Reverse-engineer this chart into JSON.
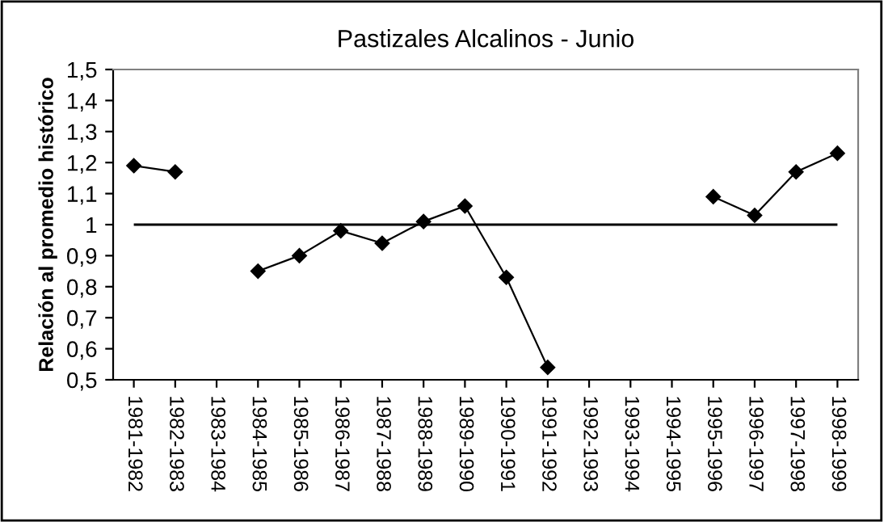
{
  "chart_data": {
    "type": "line",
    "title": "Pastizales Alcalinos - Junio",
    "ylabel": "Relación al promedio histórico",
    "categories": [
      "1981-1982",
      "1982-1983",
      "1983-1984",
      "1984-1985",
      "1985-1986",
      "1986-1987",
      "1987-1988",
      "1988-1989",
      "1989-1990",
      "1990-1991",
      "1991-1992",
      "1992-1993",
      "1993-1994",
      "1994-1995",
      "1995-1996",
      "1996-1997",
      "1997-1998",
      "1998-1999"
    ],
    "series": [
      {
        "color": "#000000",
        "values": [
          1.19,
          1.17,
          null,
          0.85,
          0.9,
          0.98,
          0.94,
          1.01,
          1.06,
          0.83,
          0.54,
          null,
          null,
          null,
          1.09,
          1.03,
          1.17,
          1.23
        ]
      }
    ],
    "ylim": [
      0.5,
      1.5
    ],
    "yticks": [
      {
        "value": 0.5,
        "label": "0,5"
      },
      {
        "value": 0.6,
        "label": "0,6"
      },
      {
        "value": 0.7,
        "label": "0,7"
      },
      {
        "value": 0.8,
        "label": "0,8"
      },
      {
        "value": 0.9,
        "label": "0,9"
      },
      1,
      {
        "value": 1.1,
        "label": "1,1"
      },
      {
        "value": 1.2,
        "label": "1,2"
      },
      {
        "value": 1.3,
        "label": "1,3"
      },
      {
        "value": 1.4,
        "label": "1,4"
      },
      {
        "value": 1.5,
        "label": "1,5"
      }
    ],
    "ref_lines": [
      {
        "axis": "y",
        "value": 1,
        "color": "#000000"
      }
    ],
    "marker": "diamond",
    "line_style": "solid",
    "grid": false,
    "legend": false
  }
}
